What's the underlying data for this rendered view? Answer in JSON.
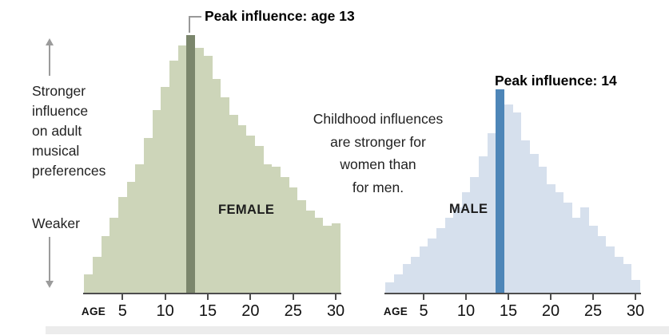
{
  "left_scale": {
    "top_lines": [
      "Stronger",
      "influence",
      "on adult",
      "musical",
      "preferences"
    ],
    "bottom_label": "Weaker"
  },
  "center_note": {
    "lines": [
      "Childhood influences",
      "are stronger for",
      "women than",
      "for men."
    ]
  },
  "colors": {
    "female_fill": "#cdd5b9",
    "female_peak": "#7b866c",
    "male_fill": "#d6e0ed",
    "male_peak": "#4e86b8",
    "axis": "#4d4d4d",
    "arrow": "#9b9b9b",
    "text": "#1d1d1d",
    "bottom_strip": "#ececec"
  },
  "chart_data": [
    {
      "type": "bar",
      "name": "female",
      "series_label": "FEMALE",
      "peak_annotation": "Peak influence: age 13",
      "peak_age": 13,
      "xlabel": "AGE",
      "x_ticks": [
        5,
        10,
        15,
        20,
        25,
        30
      ],
      "categories": [
        1,
        2,
        3,
        4,
        5,
        6,
        7,
        8,
        9,
        10,
        11,
        12,
        13,
        14,
        15,
        16,
        17,
        18,
        19,
        20,
        21,
        22,
        23,
        24,
        25,
        26,
        27,
        28,
        29,
        30
      ],
      "values": [
        7,
        14,
        22,
        29,
        37,
        43,
        50,
        60,
        71,
        80,
        90,
        96,
        100,
        95,
        92,
        83,
        76,
        69,
        65,
        61,
        57,
        50,
        49,
        45,
        41,
        36,
        32,
        29,
        26,
        27
      ],
      "ylim": [
        0,
        100
      ],
      "value_scale": "relative influence, female peak = 100",
      "fill_color": "#cdd5b9",
      "peak_color": "#7b866c",
      "legend_position": "none",
      "grid": false
    },
    {
      "type": "bar",
      "name": "male",
      "series_label": "MALE",
      "peak_annotation": "Peak influence: 14",
      "peak_age": 14,
      "xlabel": "AGE",
      "x_ticks": [
        5,
        10,
        15,
        20,
        25,
        30
      ],
      "categories": [
        1,
        2,
        3,
        4,
        5,
        6,
        7,
        8,
        9,
        10,
        11,
        12,
        13,
        14,
        15,
        16,
        17,
        18,
        19,
        20,
        21,
        22,
        23,
        24,
        25,
        26,
        27,
        28,
        29,
        30
      ],
      "values": [
        4,
        7,
        11,
        14,
        18,
        21,
        25,
        29,
        33,
        39,
        45,
        53,
        62,
        79,
        73,
        70,
        59,
        54,
        49,
        42,
        39,
        35,
        29,
        33,
        26,
        22,
        18,
        14,
        11,
        5
      ],
      "ylim": [
        0,
        100
      ],
      "value_scale": "relative influence, female peak = 100",
      "fill_color": "#d6e0ed",
      "peak_color": "#4e86b8",
      "legend_position": "none",
      "grid": false
    }
  ]
}
